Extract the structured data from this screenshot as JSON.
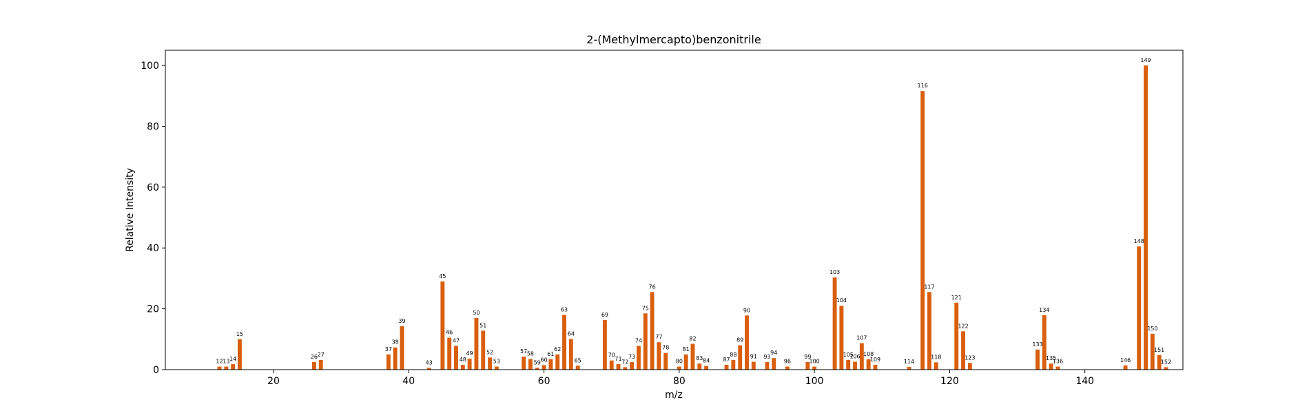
{
  "chart_data": {
    "type": "bar",
    "title": "2-(Methylmercapto)benzonitrile",
    "xlabel": "m/z",
    "ylabel": "Relative Intensity",
    "xlim": [
      4,
      154.5
    ],
    "ylim": [
      0,
      105
    ],
    "xticks": [
      20,
      40,
      60,
      80,
      100,
      120,
      140
    ],
    "yticks": [
      0,
      20,
      40,
      60,
      80,
      100
    ],
    "bar_color": "#d95f0e",
    "grid": false,
    "legend": "none",
    "x": [
      12,
      13,
      14,
      15,
      26,
      27,
      37,
      38,
      39,
      43,
      45,
      46,
      47,
      48,
      49,
      50,
      51,
      52,
      53,
      57,
      58,
      59,
      60,
      61,
      62,
      63,
      64,
      65,
      69,
      70,
      71,
      72,
      73,
      74,
      75,
      76,
      77,
      78,
      80,
      81,
      82,
      83,
      84,
      87,
      88,
      89,
      90,
      91,
      93,
      94,
      96,
      99,
      100,
      103,
      104,
      105,
      106,
      107,
      108,
      109,
      114,
      116,
      117,
      118,
      121,
      122,
      123,
      133,
      134,
      135,
      136,
      146,
      148,
      149,
      150,
      151,
      152
    ],
    "values": [
      1.0,
      1.0,
      1.8,
      10.0,
      2.5,
      3.2,
      5.0,
      7.3,
      14.3,
      0.6,
      29.0,
      10.5,
      7.8,
      1.6,
      3.6,
      17.0,
      12.8,
      4.0,
      1.0,
      4.3,
      3.5,
      0.6,
      1.5,
      3.4,
      5.0,
      18.0,
      10.1,
      1.3,
      16.3,
      3.0,
      1.8,
      0.8,
      2.5,
      7.8,
      18.5,
      25.5,
      9.0,
      5.5,
      1.0,
      5.0,
      8.5,
      2.0,
      1.2,
      1.6,
      3.2,
      8.0,
      17.8,
      2.6,
      2.5,
      3.8,
      1.0,
      2.5,
      1.0,
      30.3,
      21.0,
      3.2,
      2.6,
      8.7,
      3.4,
      1.6,
      0.9,
      91.6,
      25.5,
      2.4,
      22.0,
      12.6,
      2.2,
      6.6,
      17.9,
      2.0,
      1.0,
      1.4,
      40.5,
      100.0,
      11.8,
      4.8,
      0.8
    ]
  }
}
